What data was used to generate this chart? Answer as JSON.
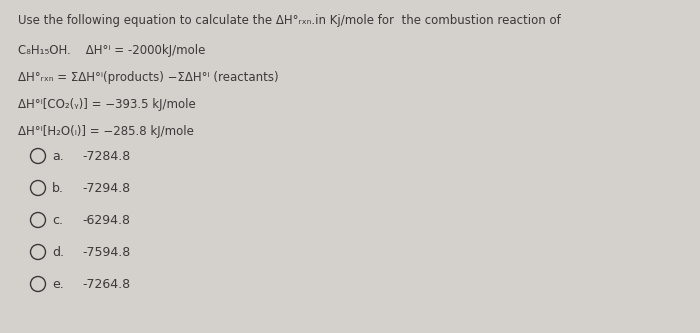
{
  "background_color": "#d4d0cb",
  "title_line": "Use the following equation to calculate the ΔH°ᵣₓₙ.in Kj/mole for  the combustion reaction of",
  "line1a": "C₈H₁₅OH.    ΔH°ⁱ = -2000kJ/mole",
  "line2": "ΔH°ᵣₓₙ = ΣΔH°ⁱ(products) −ΣΔH°ⁱ (reactants)",
  "line3": "ΔH°ⁱ[CO₂(ᵧ)] = −393.5 kJ/mole",
  "line4": "ΔH°ⁱ[H₂O(ₗ)] = −285.8 kJ/mole",
  "options": [
    {
      "label": "a.",
      "value": "-7284.8"
    },
    {
      "label": "b.",
      "value": "-7294.8"
    },
    {
      "label": "c.",
      "value": "-6294.8"
    },
    {
      "label": "d.",
      "value": "-7594.8"
    },
    {
      "label": "e.",
      "value": "-7264.8"
    }
  ],
  "text_color": "#3a3a3a",
  "font_size": 8.5,
  "option_font_size": 9.0
}
